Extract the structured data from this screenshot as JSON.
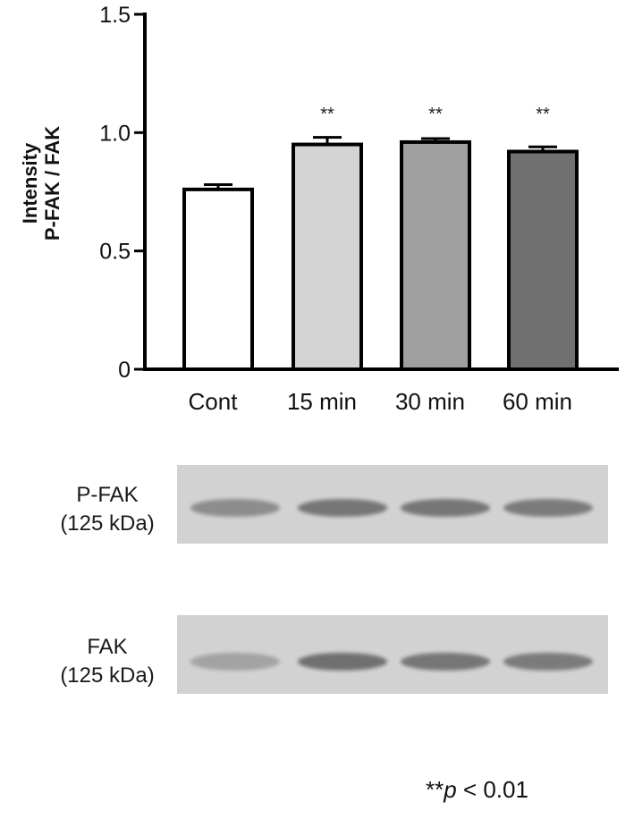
{
  "chart_data": {
    "type": "bar",
    "categories": [
      "Cont",
      "15 min",
      "30 min",
      "60 min"
    ],
    "values": [
      0.76,
      0.95,
      0.96,
      0.92
    ],
    "errors": [
      0.02,
      0.03,
      0.015,
      0.02
    ],
    "significance": [
      "",
      "**",
      "**",
      "**"
    ],
    "bar_colors": [
      "#ffffff",
      "#d4d4d4",
      "#a0a0a0",
      "#707070"
    ],
    "ylabel_line1": "Intensity",
    "ylabel_line2": "P-FAK / FAK",
    "ylim": [
      0,
      1.5
    ],
    "yticks": [
      0,
      0.5,
      1.0,
      1.5
    ],
    "ytick_labels": [
      "0",
      "0.5",
      "1.0",
      "1.5"
    ],
    "grid": false
  },
  "blots": [
    {
      "label_line1": "P-FAK",
      "label_line2": "(125 kDa)",
      "band_intensity": [
        0.55,
        0.75,
        0.75,
        0.7
      ]
    },
    {
      "label_line1": "FAK",
      "label_line2": "(125 kDa)",
      "band_intensity": [
        0.35,
        0.8,
        0.75,
        0.7
      ]
    }
  ],
  "footnote": {
    "stars": "**",
    "p": "p",
    "rest": " < 0.01"
  }
}
